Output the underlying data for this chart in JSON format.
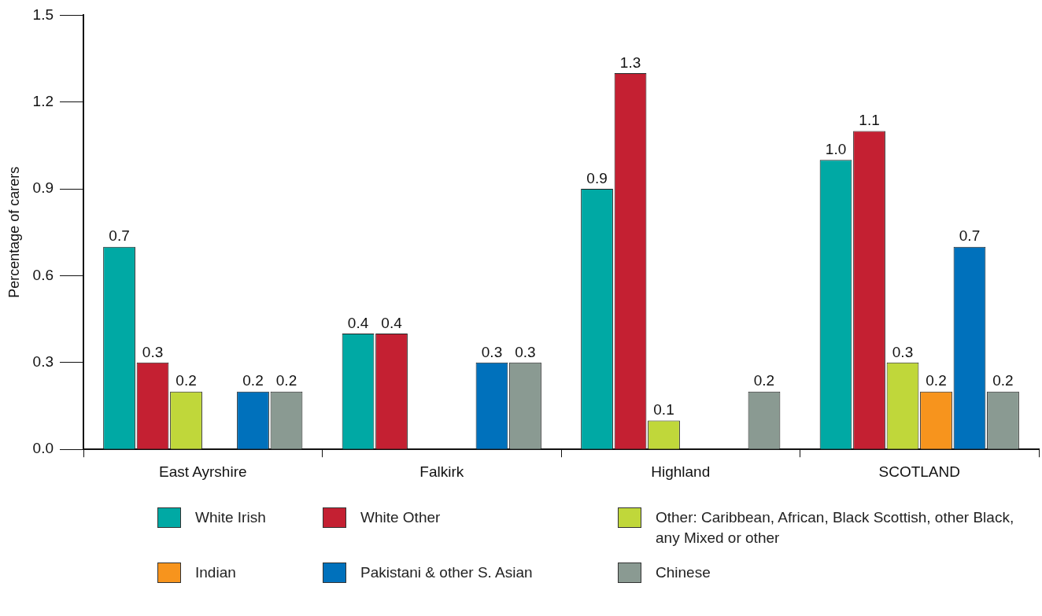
{
  "chart_data": {
    "type": "bar",
    "ylabel": "Percentage of carers",
    "categories": [
      "East Ayrshire",
      "Falkirk",
      "Highland",
      "SCOTLAND"
    ],
    "series": [
      {
        "name": "White Irish",
        "color": "#00a9a4",
        "values": [
          0.7,
          0.4,
          0.9,
          1.0
        ],
        "value_labels": [
          "0.7",
          "0.4",
          "0.9",
          "1.0"
        ]
      },
      {
        "name": "White Other",
        "color": "#c42032",
        "values": [
          0.3,
          0.4,
          1.3,
          1.1
        ],
        "value_labels": [
          "0.3",
          "0.4",
          "1.3",
          "1.1"
        ]
      },
      {
        "name": "Other: Caribbean, African, Black Scottish, other Black, any Mixed or other",
        "color": "#c0d73a",
        "values": [
          0.2,
          null,
          0.1,
          0.3
        ],
        "value_labels": [
          "0.2",
          null,
          "0.1",
          "0.3"
        ]
      },
      {
        "name": "Indian",
        "color": "#f7941d",
        "values": [
          null,
          null,
          null,
          0.2
        ],
        "value_labels": [
          null,
          null,
          null,
          "0.2"
        ]
      },
      {
        "name": "Pakistani & other S. Asian",
        "color": "#0071bc",
        "values": [
          0.2,
          0.3,
          null,
          0.7
        ],
        "value_labels": [
          "0.2",
          "0.3",
          null,
          "0.7"
        ]
      },
      {
        "name": "Chinese",
        "color": "#8a9a92",
        "values": [
          0.2,
          0.3,
          0.2,
          0.2
        ],
        "value_labels": [
          "0.2",
          "0.3",
          "0.2",
          "0.2"
        ]
      }
    ],
    "ylim": [
      0,
      1.5
    ],
    "yticks": [
      {
        "value": 0,
        "label": "0.0"
      },
      {
        "value": 0.3,
        "label": "0.3"
      },
      {
        "value": 0.6,
        "label": "0.6"
      },
      {
        "value": 0.9,
        "label": "0.9"
      },
      {
        "value": 1.2,
        "label": "1.2"
      },
      {
        "value": 1.5,
        "label": "1.5"
      }
    ],
    "grid": false,
    "legend": "bottom"
  }
}
